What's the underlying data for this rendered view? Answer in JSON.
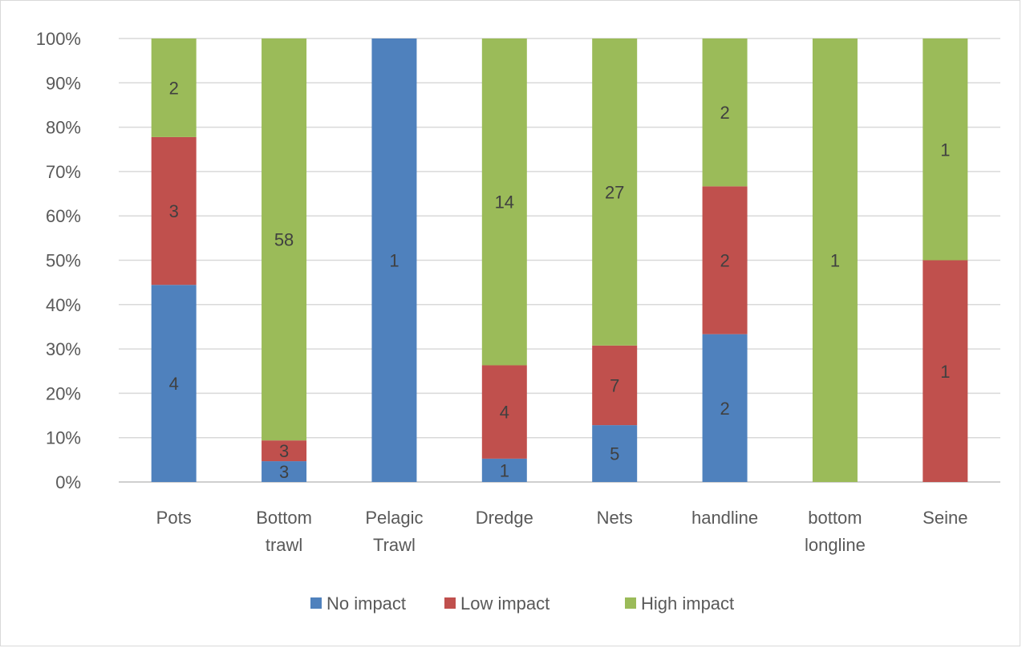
{
  "chart_data": {
    "type": "bar",
    "stacked": true,
    "percent_stacked": true,
    "title": "",
    "xlabel": "",
    "ylabel": "",
    "ylim": [
      0,
      100
    ],
    "y_ticks": [
      "0%",
      "10%",
      "20%",
      "30%",
      "40%",
      "50%",
      "60%",
      "70%",
      "80%",
      "90%",
      "100%"
    ],
    "grid": true,
    "legend_position": "bottom",
    "categories": [
      [
        "Pots"
      ],
      [
        "Bottom",
        "trawl"
      ],
      [
        "Pelagic",
        "Trawl"
      ],
      [
        "Dredge"
      ],
      [
        "Nets"
      ],
      [
        "handline"
      ],
      [
        "bottom",
        "longline"
      ],
      [
        "Seine"
      ]
    ],
    "series": [
      {
        "name": "No impact",
        "color": "#4f81bd",
        "values": [
          4,
          3,
          1,
          1,
          5,
          2,
          0,
          0
        ]
      },
      {
        "name": "Low impact",
        "color": "#c0504d",
        "values": [
          3,
          3,
          0,
          4,
          7,
          2,
          0,
          1
        ]
      },
      {
        "name": "High impact",
        "color": "#9bbb59",
        "values": [
          2,
          58,
          0,
          14,
          27,
          2,
          1,
          1
        ]
      }
    ]
  }
}
